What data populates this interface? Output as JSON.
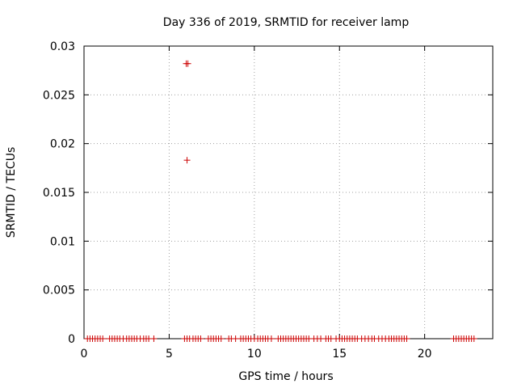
{
  "chart_data": {
    "type": "scatter",
    "title": "Day 336 of 2019, SRMTID for receiver lamp",
    "xlabel": "GPS time / hours",
    "ylabel": "SRMTID / TECUs",
    "xlim": [
      0,
      24
    ],
    "ylim": [
      0,
      0.03
    ],
    "x_ticks": [
      0,
      5,
      10,
      15,
      20
    ],
    "x_tick_labels": [
      "0",
      "5",
      "10",
      "15",
      "20"
    ],
    "y_ticks": [
      0,
      0.005,
      0.01,
      0.015,
      0.02,
      0.025,
      0.03
    ],
    "y_tick_labels": [
      "0",
      "0.005",
      "0.01",
      "0.015",
      "0.02",
      "0.025",
      "0.03"
    ],
    "grid": true,
    "marker": "+",
    "series": [
      {
        "color": "#cc0000",
        "points": [
          {
            "x": 6.0,
            "y": 0.0282
          },
          {
            "x": 6.1,
            "y": 0.0282
          },
          {
            "x": 6.05,
            "y": 0.0183
          },
          {
            "x": 0.2,
            "y": 0
          },
          {
            "x": 0.35,
            "y": 0
          },
          {
            "x": 0.5,
            "y": 0
          },
          {
            "x": 0.65,
            "y": 0
          },
          {
            "x": 0.8,
            "y": 0
          },
          {
            "x": 0.95,
            "y": 0
          },
          {
            "x": 1.1,
            "y": 0
          },
          {
            "x": 1.5,
            "y": 0
          },
          {
            "x": 1.65,
            "y": 0
          },
          {
            "x": 1.8,
            "y": 0
          },
          {
            "x": 1.95,
            "y": 0
          },
          {
            "x": 2.1,
            "y": 0
          },
          {
            "x": 2.3,
            "y": 0
          },
          {
            "x": 2.5,
            "y": 0
          },
          {
            "x": 2.65,
            "y": 0
          },
          {
            "x": 2.8,
            "y": 0
          },
          {
            "x": 2.95,
            "y": 0
          },
          {
            "x": 3.1,
            "y": 0
          },
          {
            "x": 3.3,
            "y": 0
          },
          {
            "x": 3.5,
            "y": 0
          },
          {
            "x": 3.65,
            "y": 0
          },
          {
            "x": 3.8,
            "y": 0
          },
          {
            "x": 4.1,
            "y": 0
          },
          {
            "x": 5.9,
            "y": 0
          },
          {
            "x": 6.05,
            "y": 0
          },
          {
            "x": 6.2,
            "y": 0
          },
          {
            "x": 6.4,
            "y": 0
          },
          {
            "x": 6.55,
            "y": 0
          },
          {
            "x": 6.7,
            "y": 0
          },
          {
            "x": 6.85,
            "y": 0
          },
          {
            "x": 7.3,
            "y": 0
          },
          {
            "x": 7.45,
            "y": 0
          },
          {
            "x": 7.6,
            "y": 0
          },
          {
            "x": 7.75,
            "y": 0
          },
          {
            "x": 7.9,
            "y": 0
          },
          {
            "x": 8.05,
            "y": 0
          },
          {
            "x": 8.5,
            "y": 0
          },
          {
            "x": 8.65,
            "y": 0
          },
          {
            "x": 8.9,
            "y": 0
          },
          {
            "x": 9.2,
            "y": 0
          },
          {
            "x": 9.35,
            "y": 0
          },
          {
            "x": 9.5,
            "y": 0
          },
          {
            "x": 9.65,
            "y": 0
          },
          {
            "x": 9.8,
            "y": 0
          },
          {
            "x": 10.0,
            "y": 0
          },
          {
            "x": 10.2,
            "y": 0
          },
          {
            "x": 10.35,
            "y": 0
          },
          {
            "x": 10.5,
            "y": 0
          },
          {
            "x": 10.65,
            "y": 0
          },
          {
            "x": 10.8,
            "y": 0
          },
          {
            "x": 11.0,
            "y": 0
          },
          {
            "x": 11.4,
            "y": 0
          },
          {
            "x": 11.55,
            "y": 0
          },
          {
            "x": 11.7,
            "y": 0
          },
          {
            "x": 11.85,
            "y": 0
          },
          {
            "x": 12.0,
            "y": 0
          },
          {
            "x": 12.15,
            "y": 0
          },
          {
            "x": 12.3,
            "y": 0
          },
          {
            "x": 12.45,
            "y": 0
          },
          {
            "x": 12.6,
            "y": 0
          },
          {
            "x": 12.75,
            "y": 0
          },
          {
            "x": 12.9,
            "y": 0
          },
          {
            "x": 13.05,
            "y": 0
          },
          {
            "x": 13.2,
            "y": 0
          },
          {
            "x": 13.5,
            "y": 0
          },
          {
            "x": 13.7,
            "y": 0
          },
          {
            "x": 13.9,
            "y": 0
          },
          {
            "x": 14.2,
            "y": 0
          },
          {
            "x": 14.35,
            "y": 0
          },
          {
            "x": 14.5,
            "y": 0
          },
          {
            "x": 14.8,
            "y": 0
          },
          {
            "x": 15.0,
            "y": 0
          },
          {
            "x": 15.15,
            "y": 0
          },
          {
            "x": 15.3,
            "y": 0
          },
          {
            "x": 15.45,
            "y": 0
          },
          {
            "x": 15.6,
            "y": 0
          },
          {
            "x": 15.75,
            "y": 0
          },
          {
            "x": 15.9,
            "y": 0
          },
          {
            "x": 16.05,
            "y": 0
          },
          {
            "x": 16.3,
            "y": 0
          },
          {
            "x": 16.5,
            "y": 0
          },
          {
            "x": 16.7,
            "y": 0
          },
          {
            "x": 16.9,
            "y": 0
          },
          {
            "x": 17.05,
            "y": 0
          },
          {
            "x": 17.3,
            "y": 0
          },
          {
            "x": 17.5,
            "y": 0
          },
          {
            "x": 17.7,
            "y": 0
          },
          {
            "x": 17.9,
            "y": 0
          },
          {
            "x": 18.05,
            "y": 0
          },
          {
            "x": 18.2,
            "y": 0
          },
          {
            "x": 18.35,
            "y": 0
          },
          {
            "x": 18.5,
            "y": 0
          },
          {
            "x": 18.65,
            "y": 0
          },
          {
            "x": 18.8,
            "y": 0
          },
          {
            "x": 18.95,
            "y": 0
          },
          {
            "x": 21.7,
            "y": 0
          },
          {
            "x": 21.85,
            "y": 0
          },
          {
            "x": 22.0,
            "y": 0
          },
          {
            "x": 22.15,
            "y": 0
          },
          {
            "x": 22.3,
            "y": 0
          },
          {
            "x": 22.45,
            "y": 0
          },
          {
            "x": 22.6,
            "y": 0
          },
          {
            "x": 22.75,
            "y": 0
          },
          {
            "x": 22.9,
            "y": 0
          }
        ]
      }
    ]
  }
}
